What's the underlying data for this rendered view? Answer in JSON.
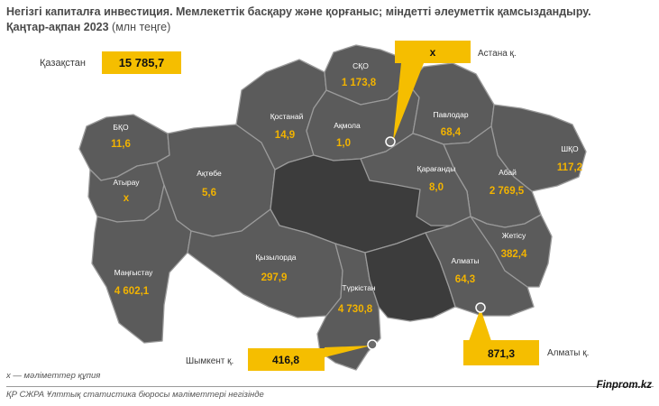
{
  "header": {
    "title_line1": "Негізгі капиталға инвестиция. Мемлекеттік басқару және қорғаныс; міндетті әлеуметтік қамсыздандыру.",
    "title_line2": "Қаңтар-ақпан 2023",
    "unit": "(млн теңге)"
  },
  "kazakhstan": {
    "label": "Қазақстан",
    "value": "15 785,7"
  },
  "regions": [
    {
      "id": "sko",
      "name": "СҚО",
      "value": "1 173,8"
    },
    {
      "id": "kostanai",
      "name": "Қостанай",
      "value": "14,9"
    },
    {
      "id": "akmola",
      "name": "Ақмола",
      "value": "1,0"
    },
    {
      "id": "pavlodar",
      "name": "Павлодар",
      "value": "68,4"
    },
    {
      "id": "bko",
      "name": "БҚО",
      "value": "11,6"
    },
    {
      "id": "atyrau",
      "name": "Атырау",
      "value": "x"
    },
    {
      "id": "aktobe",
      "name": "Ақтөбе",
      "value": "5,6"
    },
    {
      "id": "karaganda",
      "name": "Қарағанды",
      "value": "8,0"
    },
    {
      "id": "abai",
      "name": "Абай",
      "value": "2 769,5"
    },
    {
      "id": "vko",
      "name": "ШҚО",
      "value": "117,2"
    },
    {
      "id": "zhetisu",
      "name": "Жетісу",
      "value": "382,4"
    },
    {
      "id": "almaty_reg",
      "name": "Алматы",
      "value": "64,3"
    },
    {
      "id": "mangystau",
      "name": "Маңғыстау",
      "value": "4 602,1"
    },
    {
      "id": "kyzylorda",
      "name": "Қызылорда",
      "value": "297,9"
    },
    {
      "id": "turkistan",
      "name": "Түркістан",
      "value": "4 730,8"
    }
  ],
  "cities": [
    {
      "id": "astana",
      "label": "Астана қ.",
      "value": "x"
    },
    {
      "id": "shymkent",
      "label": "Шымкент қ.",
      "value": "416,8"
    },
    {
      "id": "almaty_city",
      "label": "Алматы қ.",
      "value": "871,3"
    }
  ],
  "colors": {
    "region_fill": "#5b5b5b",
    "dark_region_fill": "#3c3c3c",
    "accent": "#f5be00",
    "value_text": "#f2b300"
  },
  "footer": {
    "note": "x — мәліметтер құпия",
    "source": "ҚР СЖРА Ұлттық статистика бюросы мәліметтері негізінде",
    "brand": "Finprom.kz"
  }
}
